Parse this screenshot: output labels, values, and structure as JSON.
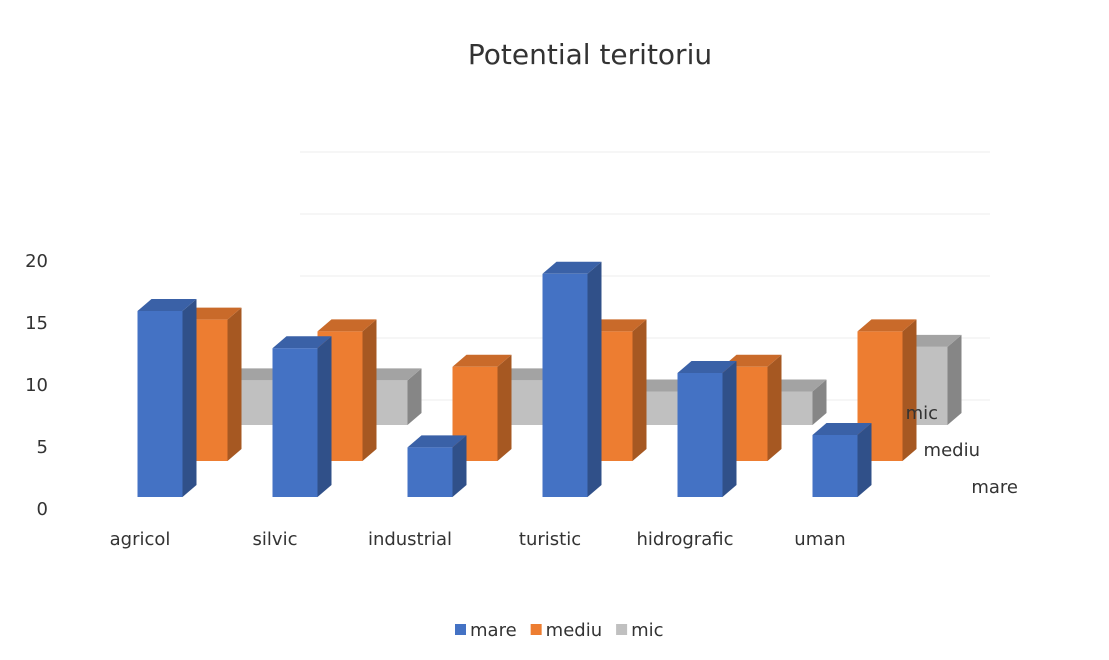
{
  "chart_data": {
    "type": "bar3d",
    "title": "Potential teritoriu",
    "categories": [
      "agricol",
      "silvic",
      "industrial",
      "turistic",
      "hidrografic",
      "uman"
    ],
    "series": [
      {
        "name": "mare",
        "color": "#4472c4",
        "values": [
          15,
          12,
          4,
          18,
          10,
          5
        ]
      },
      {
        "name": "mediu",
        "color": "#ed7d31",
        "values": [
          12,
          11,
          8,
          11,
          8,
          11
        ]
      },
      {
        "name": "mic",
        "color": "#c0c0c0",
        "values": [
          4,
          4,
          4,
          3,
          3,
          7
        ]
      }
    ],
    "ylim": [
      0,
      20
    ],
    "yticks": [
      0,
      5,
      10,
      15,
      20
    ],
    "grid": true,
    "legend": "bottom"
  }
}
